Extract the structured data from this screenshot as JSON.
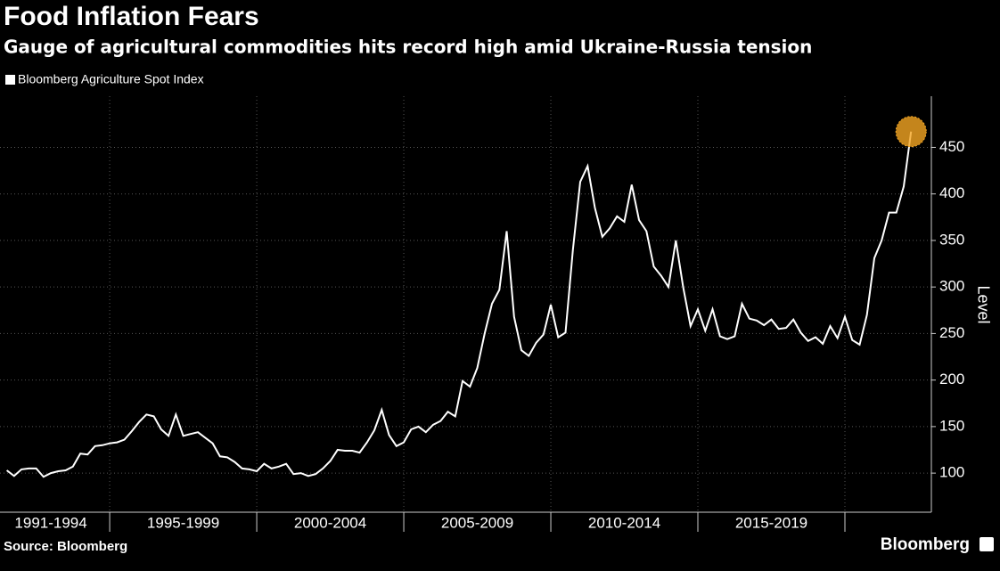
{
  "chart_data": {
    "type": "line",
    "title": "Food Inflation Fears",
    "subtitle": "Gauge of agricultural commodities hits record high amid Ukraine-Russia tension",
    "y_label": "Level",
    "source": "Source: Bloomberg",
    "logo": "Bloomberg",
    "x": [
      1991.5,
      1991.75,
      1992,
      1992.25,
      1992.5,
      1992.75,
      1993,
      1993.25,
      1993.5,
      1993.75,
      1994,
      1994.25,
      1994.5,
      1994.75,
      1995,
      1995.25,
      1995.5,
      1995.75,
      1996,
      1996.25,
      1996.5,
      1996.75,
      1997,
      1997.25,
      1997.5,
      1997.75,
      1998,
      1998.25,
      1998.5,
      1998.75,
      1999,
      1999.25,
      1999.5,
      1999.75,
      2000,
      2000.25,
      2000.5,
      2000.75,
      2001,
      2001.25,
      2001.5,
      2001.75,
      2002,
      2002.25,
      2002.5,
      2002.75,
      2003,
      2003.25,
      2003.5,
      2003.75,
      2004,
      2004.25,
      2004.5,
      2004.75,
      2005,
      2005.25,
      2005.5,
      2005.75,
      2006,
      2006.25,
      2006.5,
      2006.75,
      2007,
      2007.25,
      2007.5,
      2007.75,
      2008,
      2008.25,
      2008.5,
      2008.75,
      2009,
      2009.25,
      2009.5,
      2009.75,
      2010,
      2010.25,
      2010.5,
      2010.75,
      2011,
      2011.25,
      2011.5,
      2011.75,
      2012,
      2012.25,
      2012.5,
      2012.75,
      2013,
      2013.25,
      2013.5,
      2013.75,
      2014,
      2014.25,
      2014.5,
      2014.75,
      2015,
      2015.25,
      2015.5,
      2015.75,
      2016,
      2016.25,
      2016.5,
      2016.75,
      2017,
      2017.25,
      2017.5,
      2017.75,
      2018,
      2018.25,
      2018.5,
      2018.75,
      2019,
      2019.25,
      2019.5,
      2019.75,
      2020,
      2020.25,
      2020.5,
      2020.75,
      2021,
      2021.25,
      2021.5,
      2021.75,
      2022,
      2022.25
    ],
    "series": [
      {
        "name": "Bloomberg Agriculture Spot Index",
        "color": "#ffffff",
        "values": [
          103,
          97,
          104,
          105,
          105,
          96,
          100,
          102,
          103,
          107,
          121,
          120,
          129,
          130,
          132,
          133,
          136,
          145,
          155,
          163,
          161,
          147,
          140,
          163,
          140,
          142,
          144,
          138,
          132,
          118,
          117,
          112,
          105,
          104,
          102,
          110,
          105,
          107,
          110,
          99,
          100,
          97,
          99,
          105,
          113,
          125,
          124,
          124,
          122,
          133,
          146,
          168,
          141,
          129,
          133,
          147,
          150,
          144,
          152,
          156,
          166,
          161,
          199,
          193,
          213,
          250,
          282,
          297,
          360,
          268,
          232,
          226,
          240,
          249,
          281,
          246,
          251,
          340,
          413,
          430,
          385,
          354,
          363,
          376,
          370,
          410,
          372,
          360,
          322,
          312,
          300,
          350,
          300,
          258,
          276,
          253,
          276,
          247,
          244,
          247,
          282,
          266,
          264,
          259,
          265,
          255,
          256,
          265,
          251,
          242,
          246,
          239,
          258,
          245,
          268,
          243,
          238,
          270,
          331,
          350,
          380,
          380,
          408,
          467
        ]
      }
    ],
    "highlight_color": "#f5a623",
    "xlim": [
      1991.27,
      2022.94
    ],
    "xticks": [
      {
        "value": 1993,
        "label": "1991-1994"
      },
      {
        "value": 1997.5,
        "label": "1995-1999"
      },
      {
        "value": 2002.5,
        "label": "2000-2004"
      },
      {
        "value": 2007.5,
        "label": "2005-2009"
      },
      {
        "value": 2012.5,
        "label": "2010-2014"
      },
      {
        "value": 2017.5,
        "label": "2015-2019"
      }
    ],
    "xgrid": [
      1995,
      2000,
      2005,
      2010,
      2015,
      2020
    ],
    "ylim": [
      58,
      505
    ],
    "yticks": [
      100,
      150,
      200,
      250,
      300,
      350,
      400,
      450
    ],
    "grid": true
  }
}
